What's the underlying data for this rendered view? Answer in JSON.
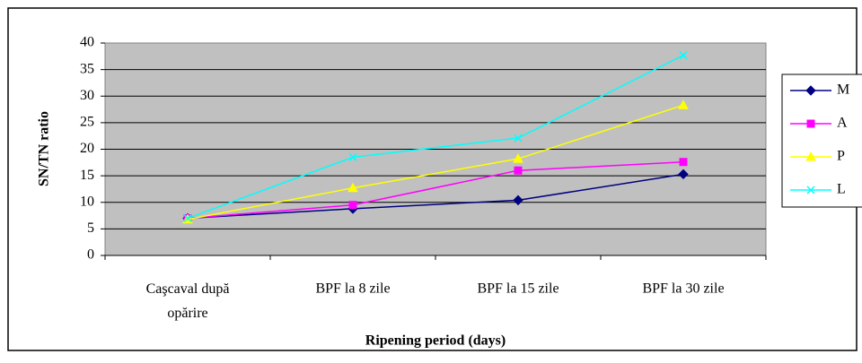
{
  "chart_data": {
    "type": "line",
    "x_label": "Ripening period (days)",
    "y_label": "SN/TN ratio",
    "categories": [
      "Caşcaval după opărire",
      "BPF la 8 zile",
      "BPF la 15 zile",
      "BPF la 30 zile"
    ],
    "series": [
      {
        "name": "M",
        "color": "#000080",
        "marker": "diamond",
        "values": [
          7,
          8.8,
          10.4,
          15.3
        ]
      },
      {
        "name": "A",
        "color": "#ff00ff",
        "marker": "square",
        "values": [
          7,
          9.5,
          16,
          17.6
        ]
      },
      {
        "name": "P",
        "color": "#ffff00",
        "marker": "triangle",
        "values": [
          6.8,
          12.7,
          18.2,
          28.3
        ]
      },
      {
        "name": "L",
        "color": "#00ffff",
        "marker": "x",
        "values": [
          7,
          18.5,
          22.1,
          37.7
        ]
      }
    ],
    "ylim": [
      0,
      40
    ],
    "yticks": [
      0,
      5,
      10,
      15,
      20,
      25,
      30,
      35,
      40
    ],
    "grid": true,
    "legend": "right"
  }
}
